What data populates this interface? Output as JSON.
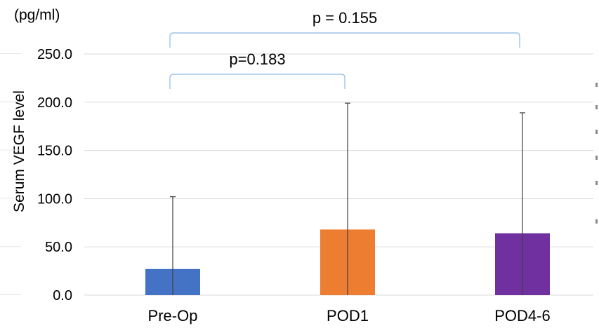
{
  "chart_data": {
    "type": "bar",
    "unit_label": "(pg/ml)",
    "ylabel": "Serum VEGF level",
    "xlabel": "",
    "ylim": [
      0,
      250
    ],
    "yticks": [
      0,
      50,
      100,
      150,
      200,
      250
    ],
    "ytick_labels": [
      "0.0",
      "50.0",
      "100.0",
      "150.0",
      "200.0",
      "250.0"
    ],
    "categories": [
      "Pre-Op",
      "POD1",
      "POD4-6"
    ],
    "values": [
      27,
      68,
      64
    ],
    "error_upper": [
      102,
      199,
      189
    ],
    "bar_colors": [
      "#4472C4",
      "#ED7D31",
      "#7030A0"
    ],
    "grid": true,
    "annotations": [
      {
        "text": "p=0.183",
        "from": 0,
        "to": 1
      },
      {
        "text": "p = 0.155",
        "from": 0,
        "to": 2
      }
    ],
    "bracket_color": "#9DC3E6"
  }
}
